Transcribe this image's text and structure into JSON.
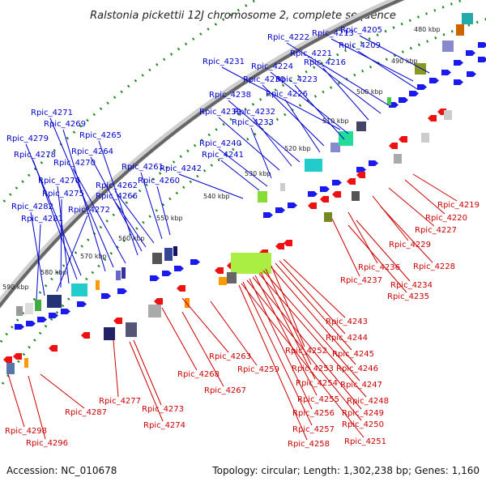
{
  "title": "Ralstonia pickettii 12J chromosome 2, complete sequence",
  "footer": {
    "accession": "Accession: NC_010678",
    "summary": "Topology: circular; Length: 1,302,238 bp; Genes: 1,160"
  },
  "colors": {
    "forward_genes": "#1a1aee",
    "reverse_genes": "#ee1111",
    "forward_labels": "#0000cc",
    "reverse_labels": "#cc0000",
    "guide_dots": "#228822",
    "backbone": "#666666"
  },
  "ticks": [
    "480 kbp",
    "490 kbp",
    "500 kbp",
    "510 kbp",
    "520 kbp",
    "530 kbp",
    "540 kbp",
    "550 kbp",
    "560 kbp",
    "570 kbp",
    "580 kbp",
    "590 kbp"
  ],
  "forward_labels": [
    "Rpic_4205",
    "Rpic_4213",
    "Rpic_4209",
    "Rpic_4222",
    "Rpic_4221",
    "Rpic_4216",
    "Rpic_4231",
    "Rpic_4224",
    "Rpic_4223",
    "Rpic_4230",
    "Rpic_4226",
    "Rpic_4238",
    "Rpic_4232",
    "Rpic_4239",
    "Rpic_4233",
    "Rpic_4240",
    "Rpic_4241",
    "Rpic_4242",
    "Rpic_4260",
    "Rpic_4261",
    "Rpic_4262",
    "Rpic_4266",
    "Rpic_4264",
    "Rpic_4265",
    "Rpic_4270",
    "Rpic_4271",
    "Rpic_4269",
    "Rpic_4279",
    "Rpic_4278",
    "Rpic_4276",
    "Rpic_4275",
    "Rpic_4272",
    "Rpic_4282",
    "Rpic_4281"
  ],
  "reverse_labels": [
    "Rpic_4219",
    "Rpic_4220",
    "Rpic_4227",
    "Rpic_4229",
    "Rpic_4228",
    "Rpic_4236",
    "Rpic_4237",
    "Rpic_4234",
    "Rpic_4235",
    "Rpic_4243",
    "Rpic_4244",
    "Rpic_4245",
    "Rpic_4252",
    "Rpic_4246",
    "Rpic_4253",
    "Rpic_4247",
    "Rpic_4254",
    "Rpic_4248",
    "Rpic_4255",
    "Rpic_4249",
    "Rpic_4256",
    "Rpic_4250",
    "Rpic_4257",
    "Rpic_4251",
    "Rpic_4258",
    "Rpic_4263",
    "Rpic_4259",
    "Rpic_4268",
    "Rpic_4267",
    "Rpic_4277",
    "Rpic_4273",
    "Rpic_4274",
    "Rpic_4287",
    "Rpic_4298",
    "Rpic_4296"
  ]
}
